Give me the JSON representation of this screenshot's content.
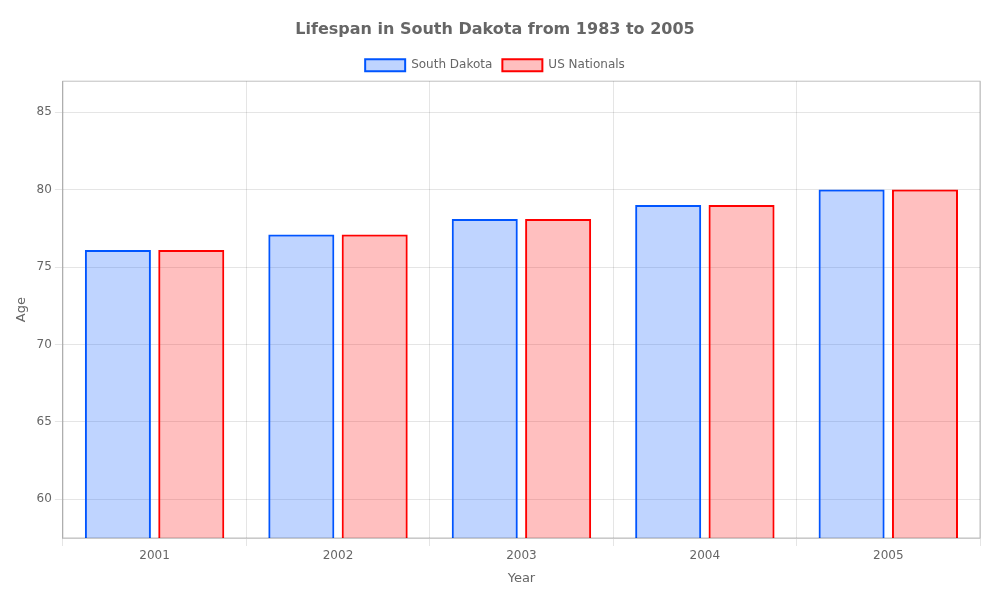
{
  "chart_data": {
    "type": "bar",
    "title": "Lifespan in South Dakota from 1983 to 2005",
    "x_label": "Year",
    "y_label": "Age",
    "categories": [
      "2001",
      "2002",
      "2003",
      "2004",
      "2005"
    ],
    "series": [
      {
        "name": "South Dakota",
        "color": "#0055ff",
        "values": [
          76.1,
          77.1,
          78.1,
          79.0,
          80.0
        ]
      },
      {
        "name": "US Nationals",
        "color": "#ff0000",
        "values": [
          76.1,
          77.1,
          78.1,
          79.0,
          80.0
        ]
      }
    ],
    "ylim": [
      57.5,
      87
    ],
    "yticks": [
      60,
      65,
      70,
      75,
      80,
      85
    ],
    "grid": true,
    "legend": "top"
  }
}
